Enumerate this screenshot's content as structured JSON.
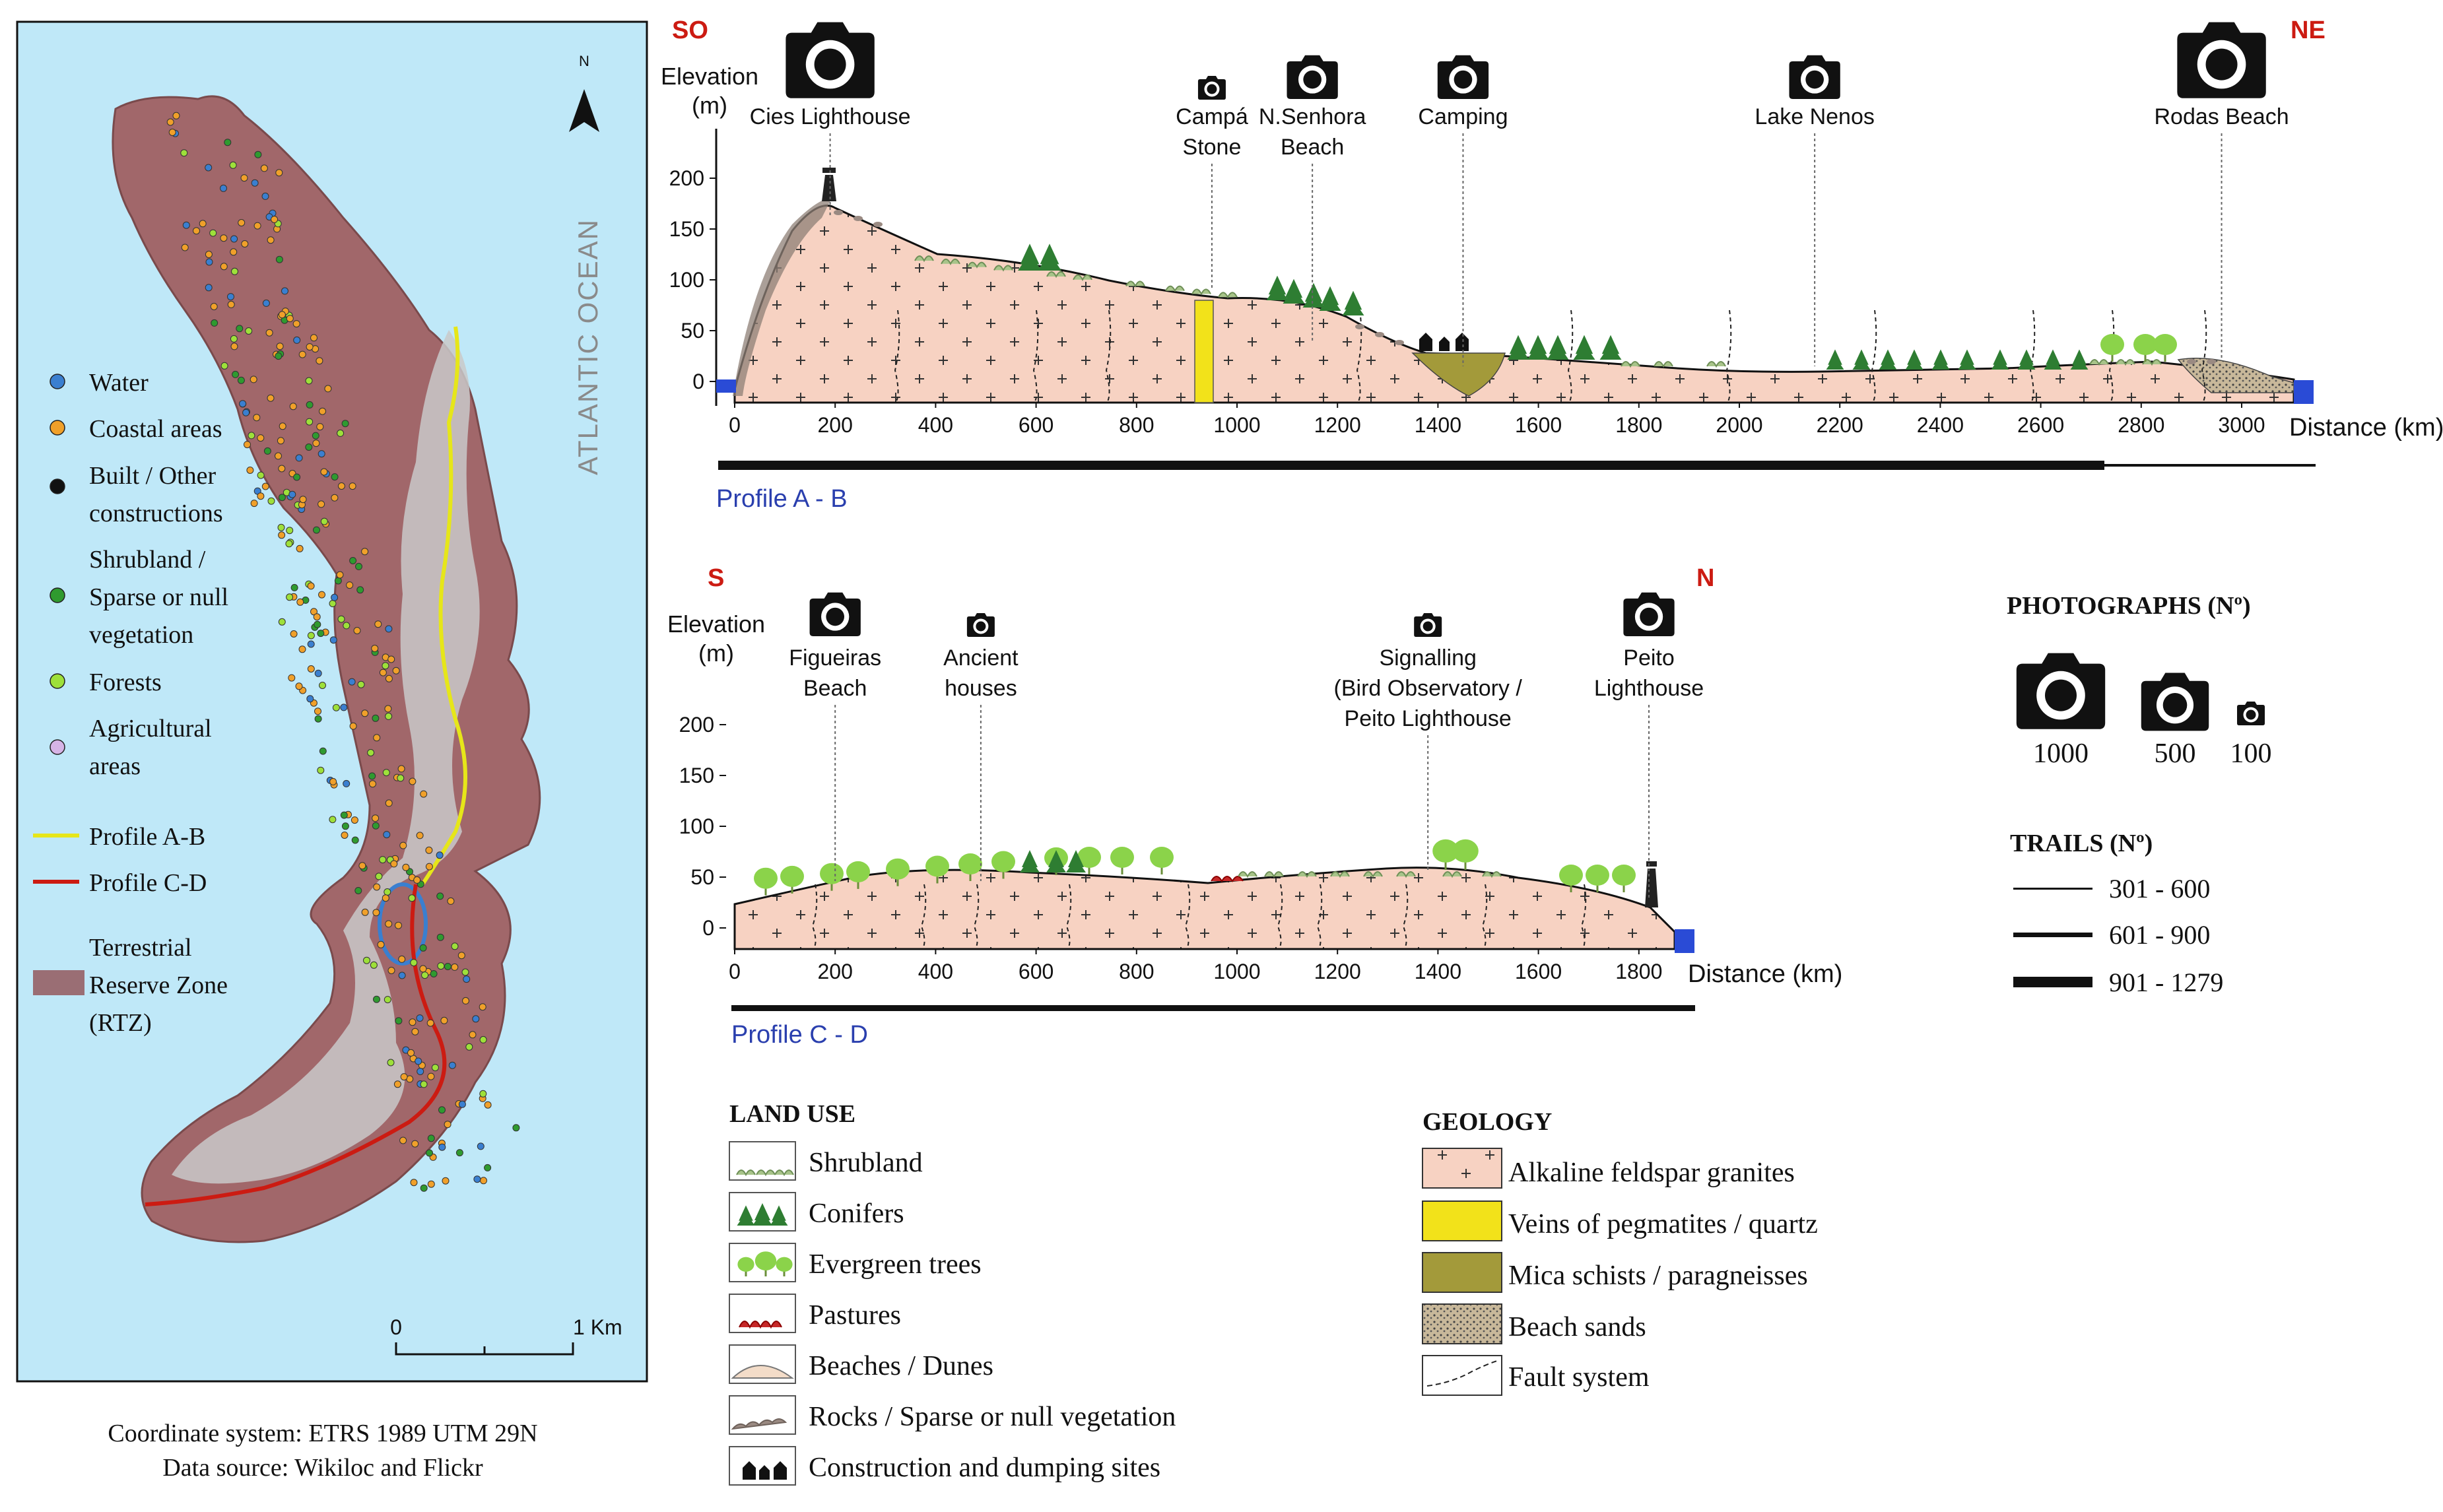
{
  "map": {
    "north_label": "N",
    "ocean_label": "ATLANTIC OCEAN",
    "legend": [
      {
        "label": [
          "Water"
        ],
        "color": "#3a7fd0"
      },
      {
        "label": [
          "Coastal areas"
        ],
        "color": "#f0a02a"
      },
      {
        "label": [
          "Built / Other",
          "constructions"
        ],
        "color": "#111111"
      },
      {
        "label": [
          "Shrubland /",
          "Sparse or null",
          "vegetation"
        ],
        "color": "#2f9a2f"
      },
      {
        "label": [
          "Forests"
        ],
        "color": "#9ee03a"
      },
      {
        "label": [
          "Agricultural",
          "areas"
        ],
        "color": "#d6b4e6"
      }
    ],
    "profile_lines": [
      {
        "label": "Profile A-B",
        "color": "#e6e619"
      },
      {
        "label": "Profile C-D",
        "color": "#cc1b12"
      }
    ],
    "rtz_label": [
      "Terrestrial",
      "Reserve Zone",
      "(RTZ)"
    ],
    "rtz_color": "#9a6e74",
    "scale": {
      "zero": "0",
      "end": "1 Km",
      "fraction_of_1km": 1
    },
    "coordinate_system": "Coordinate system: ETRS 1989 UTM 29N",
    "data_source": "Data source: Wikiloc and Flickr"
  },
  "profile_ab": {
    "start_label": "SO",
    "end_label": "NE",
    "y_title": [
      "Elevation",
      "(m)"
    ],
    "x_title": "Distance (km)",
    "name": "Profile A - B",
    "y_ticks": [
      "0",
      "50",
      "100",
      "150",
      "200"
    ],
    "x_ticks": [
      "0",
      "200",
      "400",
      "600",
      "800",
      "1000",
      "1200",
      "1400",
      "1600",
      "1800",
      "2000",
      "2200",
      "2400",
      "2600",
      "2800",
      "3000"
    ],
    "photos": [
      {
        "label": [
          "Cies Lighthouse"
        ],
        "size": "1000",
        "x": 190
      },
      {
        "label": [
          "Campá",
          "Stone"
        ],
        "size": "100",
        "x": 950
      },
      {
        "label": [
          "N.Senhora",
          "Beach"
        ],
        "size": "500",
        "x": 1150
      },
      {
        "label": [
          "Camping"
        ],
        "size": "500",
        "x": 1450
      },
      {
        "label": [
          "Lake Nenos"
        ],
        "size": "500",
        "x": 2150
      },
      {
        "label": [
          "Rodas Beach"
        ],
        "size": "1000",
        "x": 2960
      }
    ]
  },
  "profile_cd": {
    "start_label": "S",
    "end_label": "N",
    "y_title": [
      "Elevation",
      "(m)"
    ],
    "x_title": "Distance (km)",
    "name": "Profile  C - D",
    "y_ticks": [
      "0",
      "50",
      "100",
      "150",
      "200"
    ],
    "x_ticks": [
      "0",
      "200",
      "400",
      "600",
      "800",
      "1000",
      "1200",
      "1400",
      "1600",
      "1800"
    ],
    "photos": [
      {
        "label": [
          "Figueiras",
          "Beach"
        ],
        "size": "500",
        "x": 200
      },
      {
        "label": [
          "Ancient",
          "houses"
        ],
        "size": "100",
        "x": 490
      },
      {
        "label": [
          "Signalling",
          "(Bird Observatory /",
          "Peito Lighthouse"
        ],
        "size": "100",
        "x": 1380
      },
      {
        "label": [
          "Peito",
          "Lighthouse"
        ],
        "size": "500",
        "x": 1820
      }
    ]
  },
  "photographs_legend": {
    "title": "PHOTOGRAPHS (Nº)",
    "sizes": [
      "1000",
      "500",
      "100"
    ]
  },
  "trails_legend": {
    "title": "TRAILS (Nº)",
    "classes": [
      "301 - 600",
      "601 - 900",
      "901 - 1279"
    ]
  },
  "land_use": {
    "title": "LAND USE",
    "items": [
      "Shrubland",
      "Conifers",
      "Evergreen trees",
      "Pastures",
      "Beaches / Dunes",
      "Rocks / Sparse or null vegetation",
      "Construction and dumping sites"
    ]
  },
  "geology": {
    "title": "GEOLOGY",
    "items": [
      {
        "label": "Alkaline feldspar granites",
        "color": "#f7d2c2"
      },
      {
        "label": "Veins of pegmatites / quartz",
        "color": "#f2e21a"
      },
      {
        "label": "Mica schists / paragneisses",
        "color": "#a39a3a"
      },
      {
        "label": "Beach sands",
        "color": "#c8b89a"
      },
      {
        "label": "Fault system",
        "color": "#ffffff"
      }
    ]
  }
}
